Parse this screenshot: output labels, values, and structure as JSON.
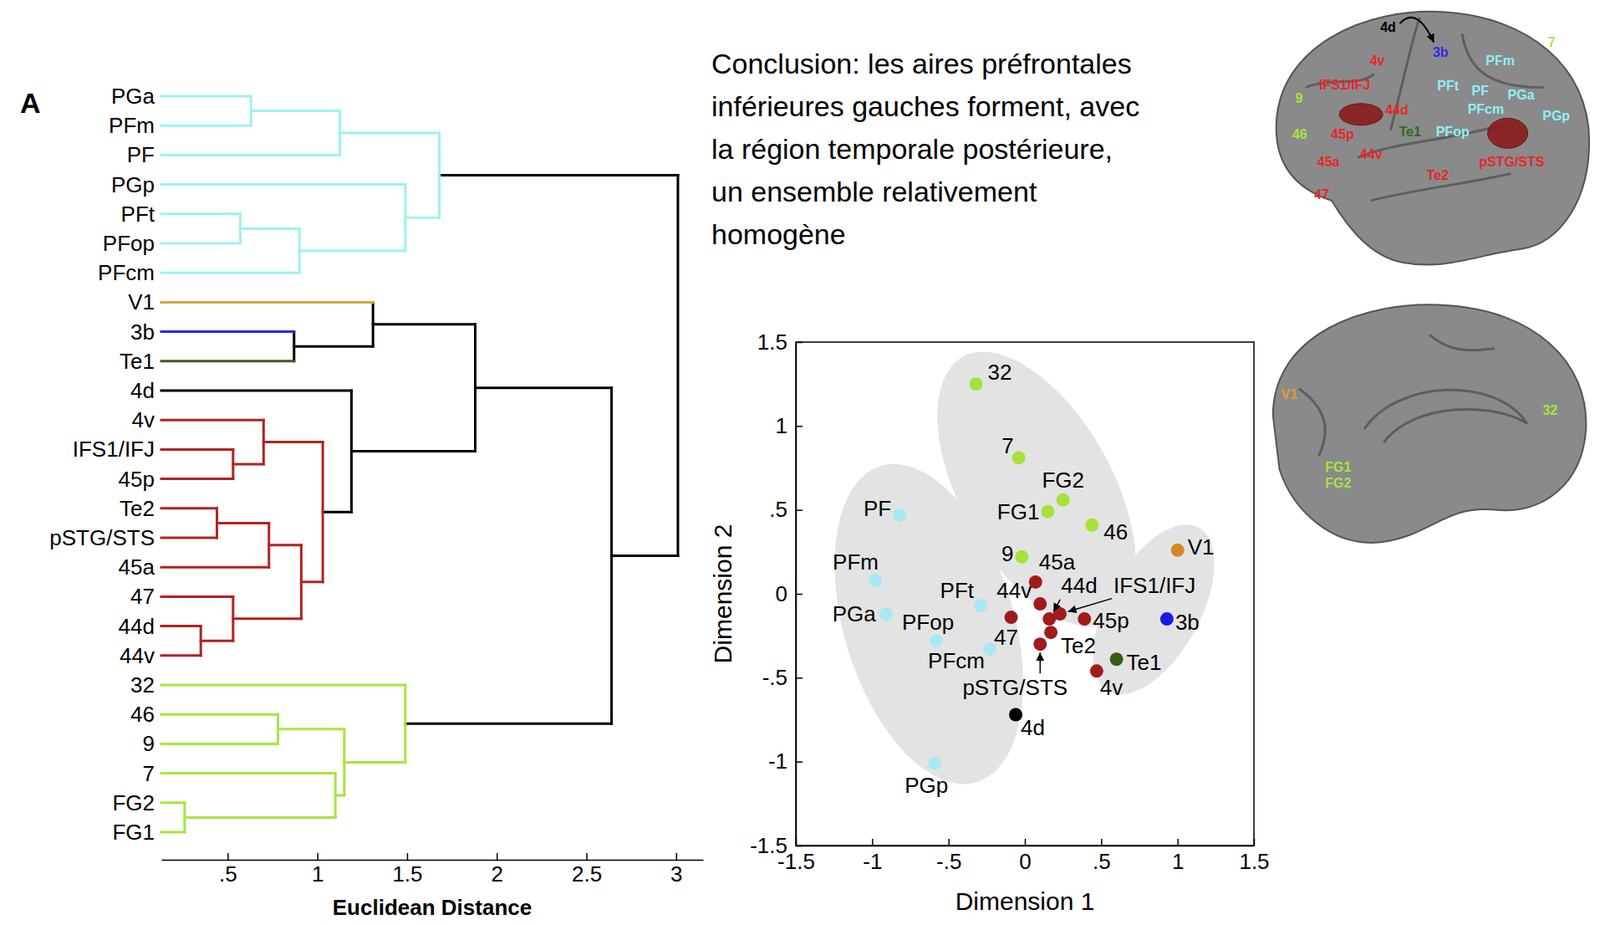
{
  "panel_label": "A",
  "conclusion": [
    "Conclusion: les aires préfrontales",
    "inférieures gauches forment, avec",
    "la région temporale postérieure,",
    "un ensemble relativement",
    "homogène"
  ],
  "chart_data": [
    {
      "type": "dendrogram",
      "x_label": "Euclidean Distance",
      "xlim": [
        0.13,
        3.15
      ],
      "xticks": [
        {
          "value": 0.5,
          "label": ".5"
        },
        1,
        1.5,
        2,
        2.5,
        3
      ],
      "tree": {
        "height": 3.01,
        "color": "#000000",
        "children": [
          {
            "height": 1.68,
            "color": "#9ef0f5",
            "children": [
              {
                "height": 1.125,
                "color": "#9ef0f5",
                "children": [
                  {
                    "height": 0.63,
                    "color": "#9ef0f5",
                    "children": [
                      {
                        "label": "PGa",
                        "color": "#9ef0f5"
                      },
                      {
                        "label": "PFm",
                        "color": "#9ef0f5"
                      }
                    ]
                  },
                  {
                    "label": "PF",
                    "color": "#9ef0f5"
                  }
                ]
              },
              {
                "height": 1.49,
                "color": "#9ef0f5",
                "children": [
                  {
                    "label": "PGp",
                    "color": "#9ef0f5"
                  },
                  {
                    "height": 0.9,
                    "color": "#9ef0f5",
                    "children": [
                      {
                        "height": 0.57,
                        "color": "#9ef0f5",
                        "children": [
                          {
                            "label": "PFt",
                            "color": "#9ef0f5"
                          },
                          {
                            "label": "PFop",
                            "color": "#9ef0f5"
                          }
                        ]
                      },
                      {
                        "label": "PFcm",
                        "color": "#9ef0f5"
                      }
                    ]
                  }
                ]
              }
            ]
          },
          {
            "height": 2.64,
            "color": "#000000",
            "children": [
              {
                "height": 1.88,
                "color": "#000000",
                "children": [
                  {
                    "height": 1.31,
                    "color": "#000000",
                    "children": [
                      {
                        "label": "V1",
                        "color": "#d4a83a"
                      },
                      {
                        "height": 0.87,
                        "color": "#000000",
                        "children": [
                          {
                            "label": "3b",
                            "color": "#2a2ae0"
                          },
                          {
                            "label": "Te1",
                            "color": "#3b5a1d"
                          }
                        ]
                      }
                    ]
                  },
                  {
                    "height": 1.19,
                    "color": "#000000",
                    "children": [
                      {
                        "label": "4d",
                        "color": "#000000"
                      },
                      {
                        "height": 1.03,
                        "color": "#b22222",
                        "children": [
                          {
                            "height": 0.7,
                            "color": "#b22222",
                            "children": [
                              {
                                "label": "4v",
                                "color": "#b22222"
                              },
                              {
                                "height": 0.53,
                                "color": "#b22222",
                                "children": [
                                  {
                                    "label": "IFS1/IFJ",
                                    "color": "#b22222"
                                  },
                                  {
                                    "label": "45p",
                                    "color": "#b22222"
                                  }
                                ]
                              }
                            ]
                          },
                          {
                            "height": 0.91,
                            "color": "#b22222",
                            "children": [
                              {
                                "height": 0.73,
                                "color": "#b22222",
                                "children": [
                                  {
                                    "height": 0.44,
                                    "color": "#b22222",
                                    "children": [
                                      {
                                        "label": "Te2",
                                        "color": "#b22222"
                                      },
                                      {
                                        "label": "pSTG/STS",
                                        "color": "#b22222"
                                      }
                                    ]
                                  },
                                  {
                                    "label": "45a",
                                    "color": "#b22222"
                                  }
                                ]
                              },
                              {
                                "height": 0.53,
                                "color": "#b22222",
                                "children": [
                                  {
                                    "label": "47",
                                    "color": "#b22222"
                                  },
                                  {
                                    "height": 0.35,
                                    "color": "#b22222",
                                    "children": [
                                      {
                                        "label": "44d",
                                        "color": "#b22222"
                                      },
                                      {
                                        "label": "44v",
                                        "color": "#b22222"
                                      }
                                    ]
                                  }
                                ]
                              }
                            ]
                          }
                        ]
                      }
                    ]
                  }
                ]
              },
              {
                "height": 1.49,
                "color": "#a6e640",
                "children": [
                  {
                    "label": "32",
                    "color": "#a6e640"
                  },
                  {
                    "height": 1.15,
                    "color": "#a6e640",
                    "children": [
                      {
                        "height": 0.78,
                        "color": "#a6e640",
                        "children": [
                          {
                            "label": "46",
                            "color": "#a6e640"
                          },
                          {
                            "label": "9",
                            "color": "#a6e640"
                          }
                        ]
                      },
                      {
                        "height": 1.1,
                        "color": "#a6e640",
                        "children": [
                          {
                            "label": "7",
                            "color": "#a6e640"
                          },
                          {
                            "height": 0.26,
                            "color": "#a6e640",
                            "children": [
                              {
                                "label": "FG2",
                                "color": "#a6e640"
                              },
                              {
                                "label": "FG1",
                                "color": "#a6e640"
                              }
                            ]
                          }
                        ]
                      }
                    ]
                  }
                ]
              }
            ]
          }
        ]
      }
    },
    {
      "type": "scatter",
      "x_label": "Dimension 1",
      "y_label": "Dimension 2",
      "xlim": [
        -1.5,
        1.5
      ],
      "ylim": [
        -1.5,
        1.5
      ],
      "xticks": [
        -1.5,
        -1,
        {
          "value": -0.5,
          "label": "-.5"
        },
        0,
        {
          "value": 0.5,
          "label": ".5"
        },
        1,
        1.5
      ],
      "yticks": [
        -1.5,
        -1,
        {
          "value": -0.5,
          "label": "-.5"
        },
        0,
        {
          "value": 0.5,
          "label": ".5"
        },
        1,
        1.5
      ],
      "labels": [
        "32",
        "7",
        "FG2",
        "FG1",
        "46",
        "9",
        "PF",
        "PFm",
        "PGa",
        "PFt",
        "PFop",
        "PFcm",
        "PGp",
        "V1",
        "3b",
        "Te1",
        "4d",
        "45a",
        "44v",
        "44d",
        "IFS1/IFJ",
        "45p",
        "Te2",
        "pSTG/STS",
        "4v",
        "47"
      ],
      "x": [
        -0.32,
        -0.04,
        0.25,
        0.15,
        0.44,
        -0.02,
        -0.82,
        -0.98,
        -0.91,
        -0.29,
        -0.58,
        -0.23,
        -0.59,
        1.0,
        0.93,
        0.6,
        -0.06,
        0.07,
        0.1,
        0.16,
        0.23,
        0.39,
        0.17,
        0.1,
        0.47,
        -0.09
      ],
      "y": [
        1.25,
        0.81,
        0.56,
        0.49,
        0.41,
        0.22,
        0.47,
        0.08,
        -0.12,
        -0.07,
        -0.28,
        -0.33,
        -1.01,
        0.26,
        -0.15,
        -0.39,
        -0.72,
        0.07,
        -0.06,
        -0.15,
        -0.12,
        -0.15,
        -0.23,
        -0.3,
        -0.46,
        -0.14
      ],
      "colors": [
        "#a6e23a",
        "#a6e23a",
        "#a6e23a",
        "#a6e23a",
        "#a6e23a",
        "#a6e23a",
        "#a9e8f2",
        "#a9e8f2",
        "#a9e8f2",
        "#a9e8f2",
        "#a9e8f2",
        "#a9e8f2",
        "#a9e8f2",
        "#d08a2a",
        "#1a1ae6",
        "#3a5a1e",
        "#000000",
        "#a01c1c",
        "#a01c1c",
        "#a01c1c",
        "#a01c1c",
        "#a01c1c",
        "#a01c1c",
        "#a01c1c",
        "#a01c1c",
        "#a01c1c"
      ]
    }
  ],
  "brain_maps": [
    {
      "labels": [
        "4d",
        "3b",
        "PFm",
        "7",
        "4v",
        "IFS1/IFJ",
        "9",
        "PFt",
        "PF",
        "PGa",
        "44d",
        "PFcm",
        "PGp",
        "46",
        "45p",
        "Te1",
        "PFop",
        "45a",
        "44v",
        "pSTG/STS",
        "Te2",
        "47"
      ],
      "colors": [
        "#000000",
        "#2a2ae0",
        "#8ff0f5",
        "#a6e640",
        "#e8262b",
        "#e8262b",
        "#a6e640",
        "#8ff0f5",
        "#8ff0f5",
        "#8ff0f5",
        "#e8262b",
        "#8ff0f5",
        "#8ff0f5",
        "#a6e640",
        "#e8262b",
        "#2d6a1a",
        "#8ff0f5",
        "#e8262b",
        "#e8262b",
        "#e8262b",
        "#e8262b",
        "#e8262b"
      ]
    },
    {
      "labels": [
        "V1",
        "32",
        "FG1",
        "FG2"
      ],
      "colors": [
        "#e0a030",
        "#a6e640",
        "#a6e640",
        "#a6e640"
      ]
    }
  ]
}
